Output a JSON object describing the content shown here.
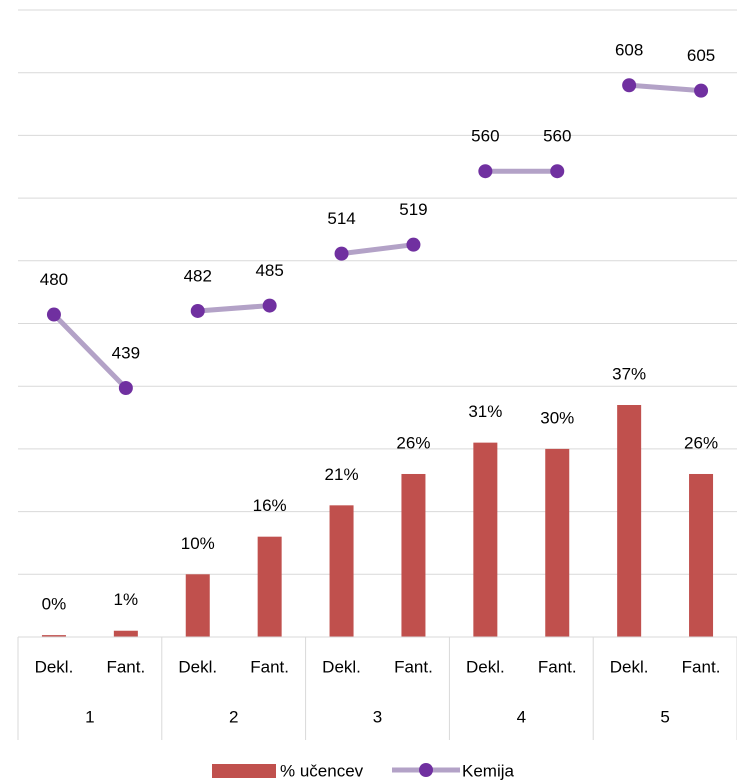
{
  "chart_data": {
    "type": "bar_line",
    "categories": [
      "Dekl.",
      "Fant.",
      "Dekl.",
      "Fant.",
      "Dekl.",
      "Fant.",
      "Dekl.",
      "Fant.",
      "Dekl.",
      "Fant."
    ],
    "groups": [
      "1",
      "2",
      "3",
      "4",
      "5"
    ],
    "series": [
      {
        "name": "% učencev",
        "type": "bar",
        "color": "#c0504d",
        "values": [
          0.3,
          1,
          10,
          16,
          21,
          26,
          31,
          30,
          37,
          26
        ],
        "value_labels": [
          "0%",
          "1%",
          "10%",
          "16%",
          "21%",
          "26%",
          "31%",
          "30%",
          "37%",
          "26%"
        ]
      },
      {
        "name": "Kemija",
        "type": "line",
        "axis": "y2",
        "color": "#b3a2c7",
        "marker_color": "#7030a0",
        "values": [
          480,
          439,
          482,
          485,
          514,
          519,
          560,
          560,
          608,
          605
        ]
      }
    ],
    "ylim": [
      0,
      100
    ],
    "yticks": [
      0,
      10,
      20,
      30,
      40,
      50,
      60,
      70,
      80,
      90,
      100
    ],
    "y2lim": [
      300,
      650
    ],
    "grid": true,
    "legend": "bottom"
  }
}
